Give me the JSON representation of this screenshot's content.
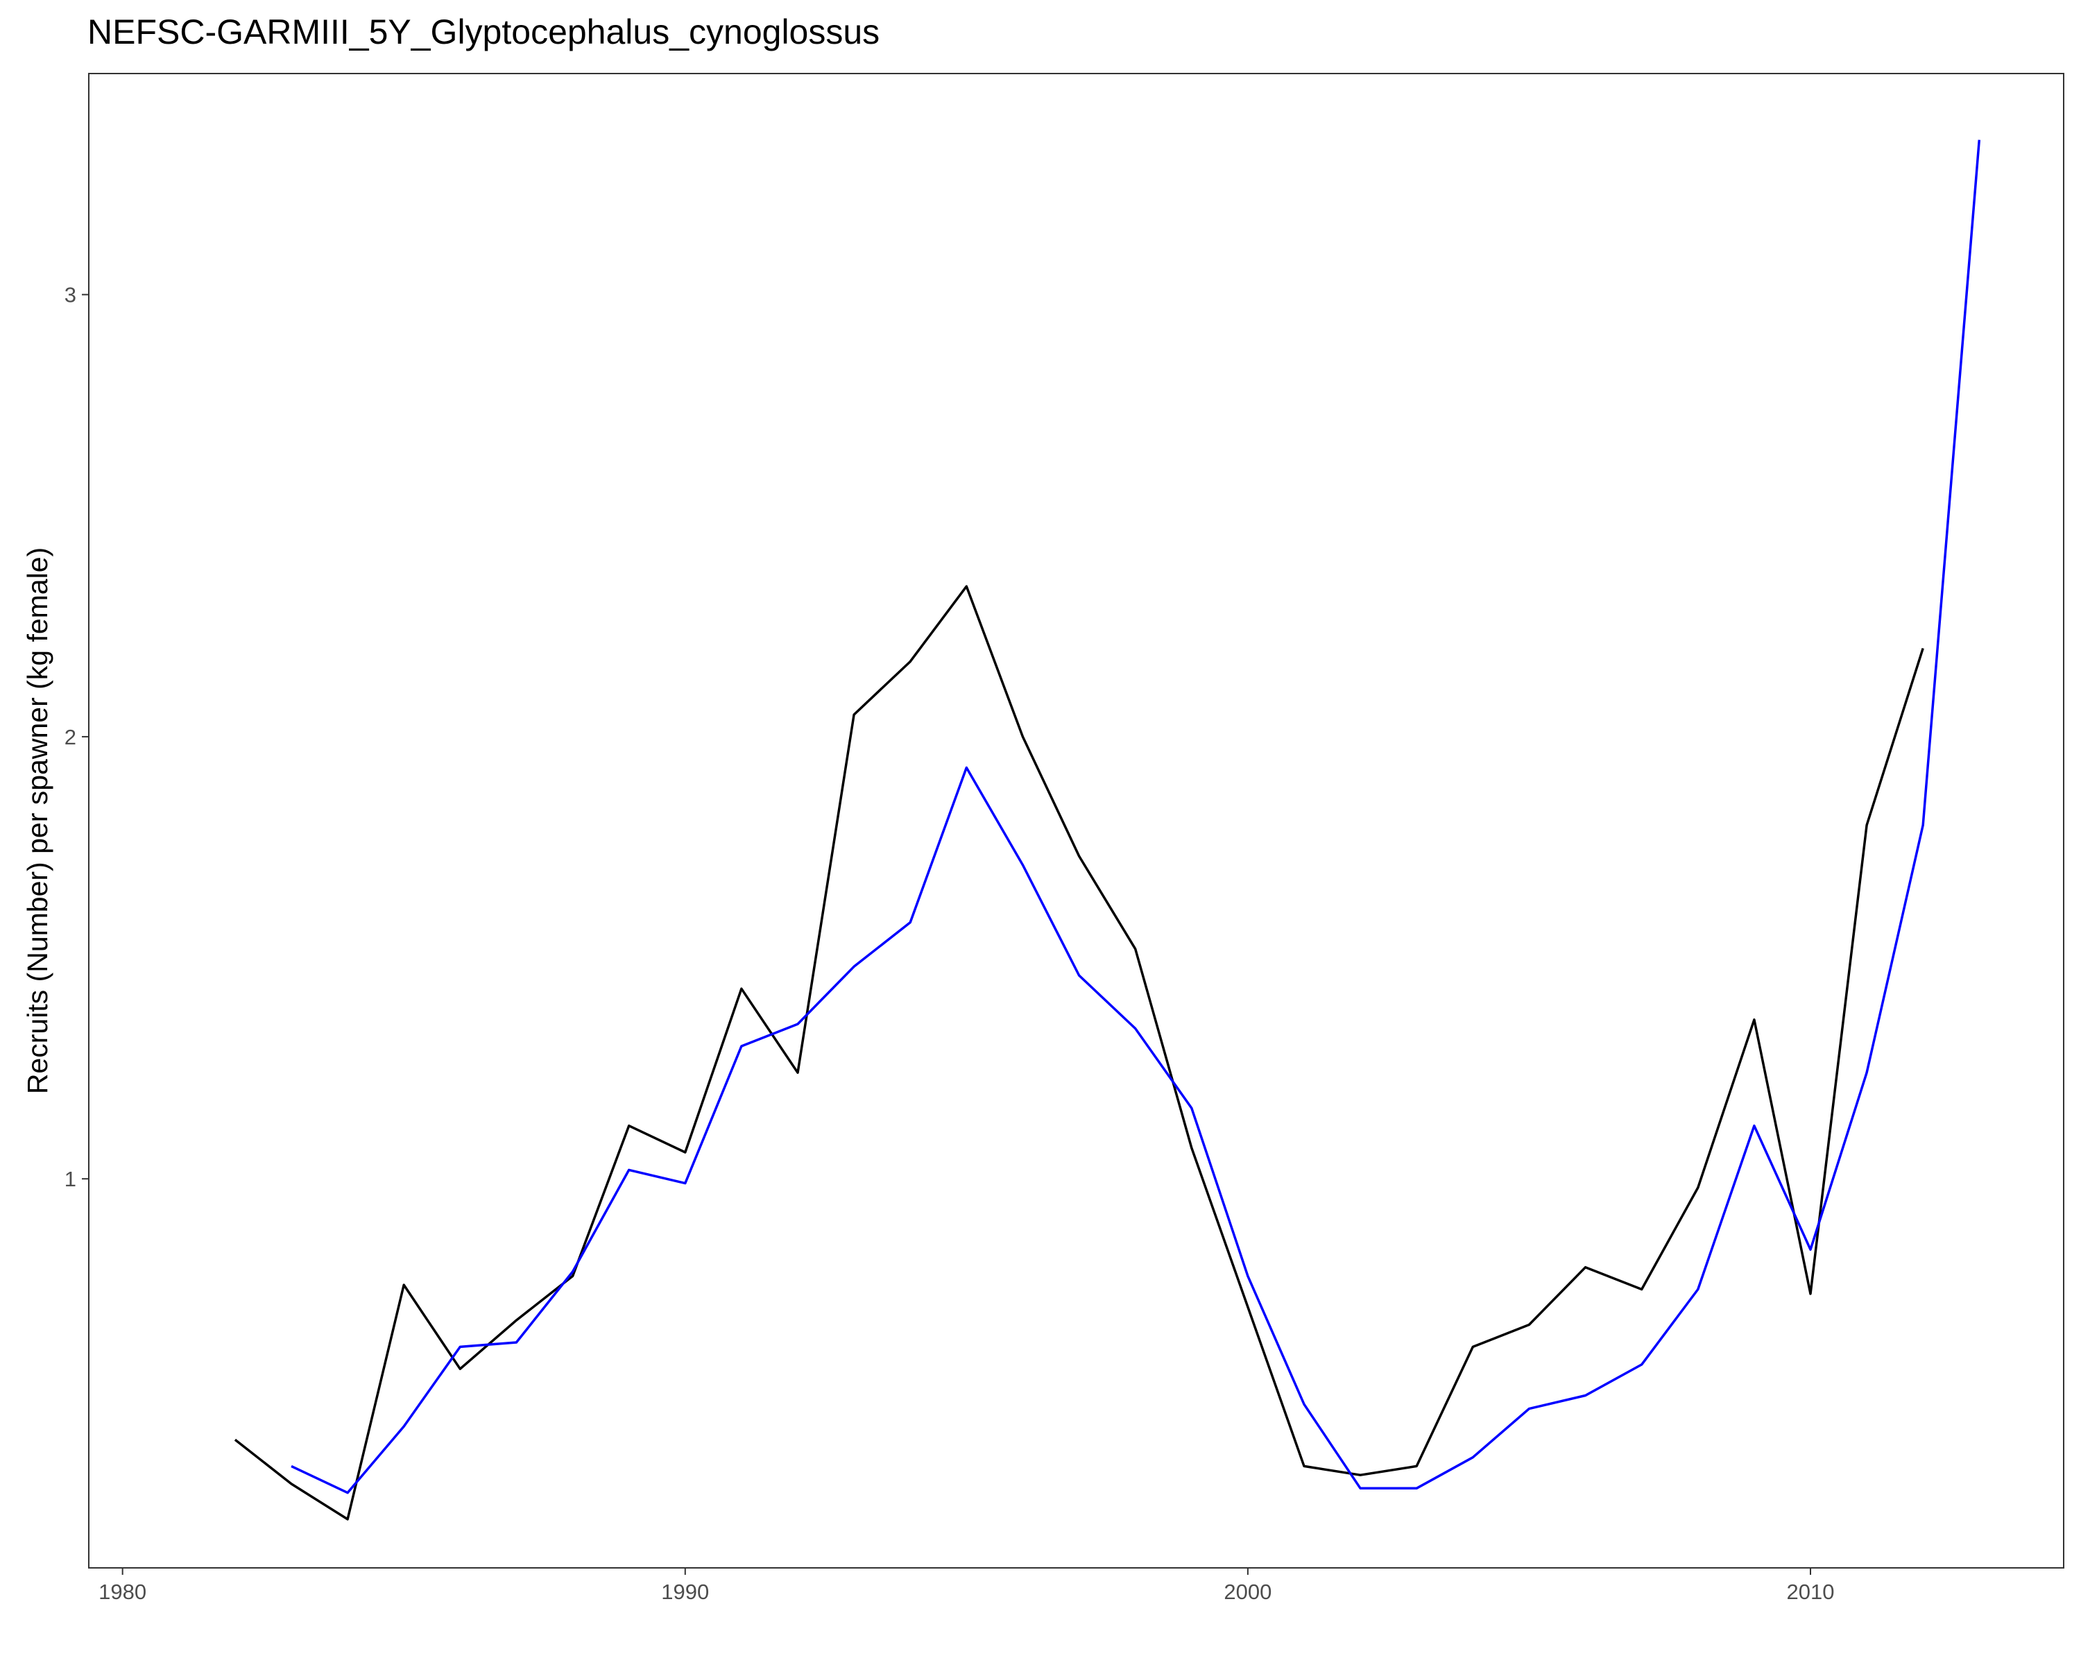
{
  "chart_data": {
    "type": "line",
    "title": "NEFSC-GARMIII_5Y_Glyptocephalus_cynoglossus",
    "xlabel": "",
    "ylabel": "Recruits (Number) per spawner (kg female)",
    "xlim": [
      1979.4,
      2014.5
    ],
    "ylim": [
      0.12,
      3.5
    ],
    "xticks": [
      1980,
      1990,
      2000,
      2010
    ],
    "xtick_labels": [
      "1980",
      "1990",
      "2000",
      "2010"
    ],
    "yticks": [
      1,
      2,
      3
    ],
    "ytick_labels": [
      "1",
      "2",
      "3"
    ],
    "grid": false,
    "legend": "none",
    "series": [
      {
        "color": "#000000",
        "x": [
          1982,
          1983,
          1984,
          1985,
          1986,
          1987,
          1988,
          1989,
          1990,
          1991,
          1992,
          1993,
          1994,
          1995,
          1996,
          1997,
          1998,
          1999,
          2000,
          2001,
          2002,
          2003,
          2004,
          2005,
          2006,
          2007,
          2008,
          2009,
          2010,
          2011,
          2012
        ],
        "y": [
          0.41,
          0.31,
          0.23,
          0.76,
          0.57,
          0.68,
          0.78,
          1.12,
          1.06,
          1.43,
          1.24,
          2.05,
          2.17,
          2.34,
          2.0,
          1.73,
          1.52,
          1.07,
          0.71,
          0.35,
          0.33,
          0.35,
          0.62,
          0.67,
          0.8,
          0.75,
          0.98,
          1.36,
          0.74,
          1.8,
          2.2
        ]
      },
      {
        "color": "#0000ff",
        "x": [
          1983,
          1984,
          1985,
          1986,
          1987,
          1988,
          1989,
          1990,
          1991,
          1992,
          1993,
          1994,
          1995,
          1996,
          1997,
          1998,
          1999,
          2000,
          2001,
          2002,
          2003,
          2004,
          2005,
          2006,
          2007,
          2008,
          2009,
          2010,
          2011,
          2012,
          2013
        ],
        "y": [
          0.35,
          0.29,
          0.44,
          0.62,
          0.63,
          0.79,
          1.02,
          0.99,
          1.3,
          1.35,
          1.48,
          1.58,
          1.93,
          1.71,
          1.46,
          1.34,
          1.16,
          0.78,
          0.49,
          0.3,
          0.3,
          0.37,
          0.48,
          0.51,
          0.58,
          0.75,
          1.12,
          0.84,
          1.24,
          1.8,
          3.35
        ]
      }
    ]
  }
}
